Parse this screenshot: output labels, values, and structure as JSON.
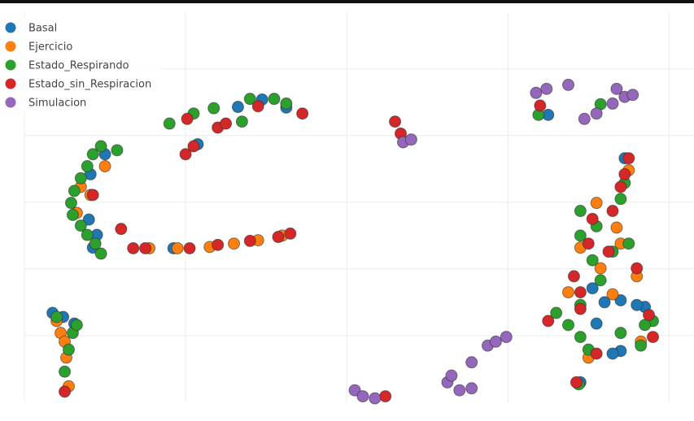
{
  "chart_data": {
    "type": "scatter",
    "xlim": [
      0,
      831
    ],
    "ylim": [
      0,
      585
    ],
    "xticks": [
      200,
      400,
      600,
      800
    ],
    "yticks": [
      100,
      200,
      300,
      400,
      500
    ],
    "grid": true,
    "show_tick_labels": false,
    "legend": "top-left",
    "series": [
      {
        "name": "Basal",
        "color": "#1f77b4",
        "x": [
          35,
          48,
          62,
          80,
          85,
          90,
          185,
          215,
          265,
          325,
          295,
          650,
          745,
          740,
          720,
          770,
          710,
          740,
          730,
          690,
          705,
          760,
          82,
          100
        ],
        "y": [
          134,
          128,
          118,
          274,
          232,
          251,
          231,
          387,
          443,
          442,
          454,
          431,
          366,
          153,
          150,
          143,
          118,
          77,
          73,
          30,
          171,
          146,
          342,
          372
        ]
      },
      {
        "name": "Ejercicio",
        "color": "#ff7f0e",
        "x": [
          40,
          45,
          52,
          55,
          50,
          82,
          70,
          65,
          100,
          155,
          190,
          230,
          260,
          290,
          320,
          710,
          735,
          740,
          760,
          730,
          690,
          675,
          750,
          715,
          700,
          765
        ],
        "y": [
          122,
          104,
          67,
          24,
          91,
          311,
          323,
          284,
          354,
          231,
          231,
          233,
          238,
          243,
          250,
          299,
          262,
          238,
          189,
          162,
          232,
          165,
          348,
          201,
          67,
          91
        ]
      },
      {
        "name": "Estado_Respirando",
        "color": "#2ca02c",
        "x": [
          95,
          85,
          78,
          70,
          62,
          58,
          60,
          70,
          78,
          88,
          95,
          115,
          180,
          210,
          235,
          270,
          280,
          310,
          325,
          40,
          60,
          65,
          55,
          50,
          638,
          715,
          690,
          660,
          675,
          690,
          700,
          765,
          780,
          770,
          690,
          690,
          705,
          730,
          740,
          715,
          750,
          745,
          710,
          688,
          740
        ],
        "y": [
          384,
          372,
          354,
          336,
          317,
          299,
          281,
          265,
          251,
          238,
          223,
          378,
          418,
          433,
          441,
          421,
          455,
          455,
          448,
          128,
          104,
          116,
          79,
          46,
          431,
          447,
          146,
          134,
          116,
          98,
          79,
          85,
          122,
          116,
          287,
          250,
          213,
          226,
          305,
          183,
          238,
          329,
          264,
          27,
          104
        ]
      },
      {
        "name": "Estado_sin_Respiracion",
        "color": "#d62728",
        "x": [
          50,
          85,
          120,
          135,
          150,
          205,
          240,
          280,
          315,
          330,
          200,
          210,
          240,
          250,
          202,
          345,
          290,
          460,
          467,
          640,
          448,
          750,
          745,
          740,
          730,
          705,
          700,
          725,
          760,
          682,
          690,
          650,
          780,
          710,
          775,
          685,
          690
        ],
        "y": [
          16,
          311,
          260,
          231,
          231,
          231,
          236,
          242,
          248,
          253,
          372,
          384,
          412,
          418,
          425,
          433,
          444,
          421,
          403,
          445,
          9,
          366,
          342,
          323,
          287,
          275,
          238,
          226,
          201,
          189,
          165,
          122,
          98,
          73,
          131,
          30,
          140
        ]
      },
      {
        "name": "Simulacion",
        "color": "#9467bd",
        "x": [
          635,
          648,
          675,
          735,
          745,
          755,
          730,
          710,
          695,
          470,
          480,
          410,
          420,
          435,
          525,
          540,
          555,
          530,
          575,
          585,
          598,
          555
        ],
        "y": [
          464,
          470,
          476,
          470,
          458,
          461,
          448,
          433,
          425,
          390,
          394,
          18,
          9,
          6,
          30,
          18,
          21,
          40,
          85,
          91,
          98,
          60
        ]
      }
    ]
  }
}
